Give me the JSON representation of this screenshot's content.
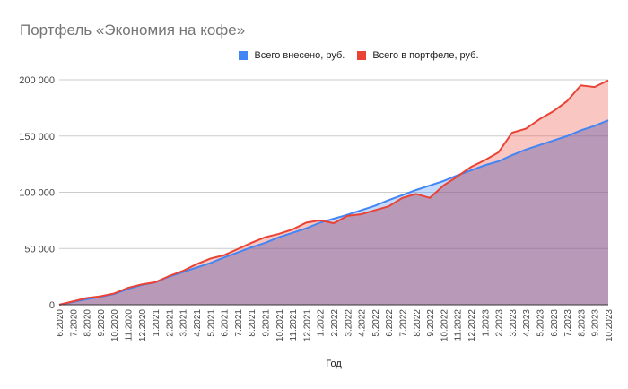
{
  "chart_data": {
    "type": "area",
    "title": "Портфель «Экономия на кофе»",
    "xlabel": "Год",
    "ylabel": "",
    "ylim": [
      0,
      200000
    ],
    "yticks": [
      "0",
      "50 000",
      "100 000",
      "150 000",
      "200 000"
    ],
    "grid": true,
    "legend_position": "top",
    "categories": [
      "6.2020",
      "7.2020",
      "8.2020",
      "9.2020",
      "10.2020",
      "11.2020",
      "12.2020",
      "1.2021",
      "2.2021",
      "3.2021",
      "4.2021",
      "5.2021",
      "6.2021",
      "7.2021",
      "8.2021",
      "9.2021",
      "10.2021",
      "11.2021",
      "12.2021",
      "1.2022",
      "2.2022",
      "3.2022",
      "4.2022",
      "5.2022",
      "6.2022",
      "7.2022",
      "8.2022",
      "9.2022",
      "10.2022",
      "11.2022",
      "12.2022",
      "1.2023",
      "2.2023",
      "3.2023",
      "4.2023",
      "5.2023",
      "6.2023",
      "7.2023",
      "8.2023",
      "9.2023",
      "10.2023"
    ],
    "series": [
      {
        "name": "Всего внесено, руб.",
        "color": "#4285f4",
        "values": [
          0,
          2500,
          5000,
          7000,
          9500,
          14000,
          17500,
          20000,
          25000,
          29000,
          33000,
          37000,
          42000,
          46500,
          51000,
          55000,
          60000,
          64000,
          68000,
          73000,
          76500,
          80000,
          84000,
          88000,
          93000,
          97500,
          102000,
          106000,
          110000,
          115000,
          119500,
          124000,
          127500,
          133000,
          138000,
          142000,
          146000,
          150000,
          155000,
          159000,
          164000
        ]
      },
      {
        "name": "Всего в портфеле, руб.",
        "color": "#ea4335",
        "values": [
          0,
          3000,
          6000,
          7500,
          10000,
          15000,
          18000,
          20000,
          25500,
          30000,
          36000,
          41000,
          44000,
          49500,
          55000,
          60000,
          63000,
          67000,
          73000,
          75000,
          72500,
          79000,
          80500,
          84000,
          87500,
          95000,
          98500,
          95000,
          106000,
          114000,
          122500,
          128500,
          135500,
          153000,
          156500,
          165000,
          172000,
          181000,
          195000,
          193500,
          199500
        ]
      }
    ]
  },
  "legend": {
    "items": [
      {
        "label": "Всего внесено, руб.",
        "color": "#4285f4"
      },
      {
        "label": "Всего в портфеле, руб.",
        "color": "#ea4335"
      }
    ]
  }
}
